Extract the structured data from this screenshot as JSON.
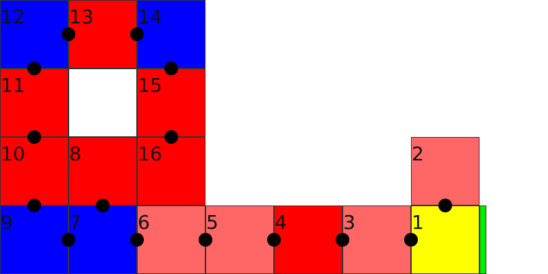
{
  "colors": {
    "blue": "#0000ff",
    "red": "#ff0000",
    "light_red": "#ff6666",
    "yellow": "#ffff00",
    "green": "#00ee00",
    "empty": "#ffffff"
  },
  "tiles": [
    {
      "id": "12",
      "label": "12",
      "color": "blue"
    },
    {
      "id": "13",
      "label": "13",
      "color": "red"
    },
    {
      "id": "14",
      "label": "14",
      "color": "blue"
    },
    {
      "id": "11",
      "label": "11",
      "color": "red"
    },
    {
      "id": "15",
      "label": "15",
      "color": "red"
    },
    {
      "id": "10",
      "label": "10",
      "color": "red"
    },
    {
      "id": "8",
      "label": "8",
      "color": "red"
    },
    {
      "id": "16",
      "label": "16",
      "color": "red"
    },
    {
      "id": "2",
      "label": "2",
      "color": "light_red"
    },
    {
      "id": "9",
      "label": "9",
      "color": "blue"
    },
    {
      "id": "7",
      "label": "7",
      "color": "blue"
    },
    {
      "id": "6",
      "label": "6",
      "color": "light_red"
    },
    {
      "id": "5",
      "label": "5",
      "color": "light_red"
    },
    {
      "id": "4",
      "label": "4",
      "color": "red"
    },
    {
      "id": "3",
      "label": "3",
      "color": "light_red"
    },
    {
      "id": "1",
      "label": "1",
      "color": "yellow"
    }
  ],
  "edge_marker": {
    "color": "green"
  }
}
